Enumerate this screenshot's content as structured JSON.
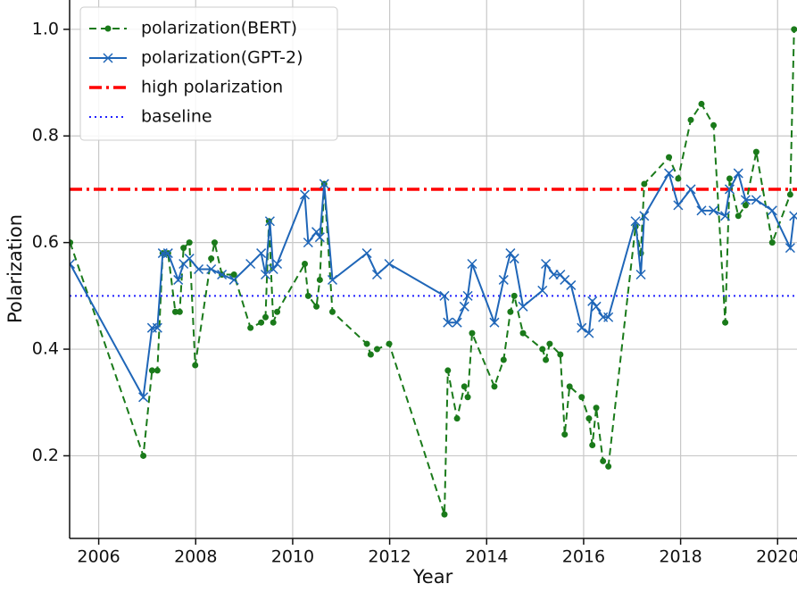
{
  "chart_data": {
    "type": "line",
    "x_label": "Year",
    "y_label": "Polarization",
    "xlim": [
      2005.4,
      2020.4
    ],
    "ylim": [
      0.045,
      1.055
    ],
    "xticks": [
      2006,
      2008,
      2010,
      2012,
      2014,
      2016,
      2018,
      2020
    ],
    "yticks": [
      0.2,
      0.4,
      0.6,
      0.8,
      {
        "value": 1,
        "label": "1.0"
      }
    ],
    "grid": true,
    "legend": "upper left",
    "series": [
      {
        "name": "polarization(BERT)",
        "color": "#1a7a1a",
        "style": "dashed",
        "marker": "circle",
        "x": [
          2005.41,
          2006.92,
          2007.1,
          2007.21,
          2007.32,
          2007.43,
          2007.58,
          2007.67,
          2007.75,
          2007.87,
          2007.99,
          2008.32,
          2008.39,
          2008.54,
          2008.79,
          2009.13,
          2009.35,
          2009.44,
          2009.51,
          2009.6,
          2009.68,
          2010.25,
          2010.32,
          2010.49,
          2010.56,
          2010.65,
          2010.82,
          2011.53,
          2011.61,
          2011.74,
          2011.99,
          2013.13,
          2013.2,
          2013.39,
          2013.54,
          2013.61,
          2013.7,
          2014.16,
          2014.35,
          2014.49,
          2014.57,
          2014.75,
          2015.15,
          2015.22,
          2015.3,
          2015.52,
          2015.61,
          2015.71,
          2015.96,
          2016.11,
          2016.18,
          2016.26,
          2016.4,
          2016.51,
          2017.07,
          2017.18,
          2017.25,
          2017.76,
          2017.95,
          2018.21,
          2018.43,
          2018.68,
          2018.92,
          2019.01,
          2019.19,
          2019.34,
          2019.56,
          2019.89,
          2020.26,
          2020.34
        ],
        "values": [
          0.6,
          0.2,
          0.36,
          0.36,
          0.58,
          0.58,
          0.47,
          0.47,
          0.59,
          0.6,
          0.37,
          0.57,
          0.6,
          0.54,
          0.54,
          0.44,
          0.45,
          0.46,
          0.64,
          0.45,
          0.47,
          0.56,
          0.5,
          0.48,
          0.53,
          0.71,
          0.47,
          0.41,
          0.39,
          0.4,
          0.41,
          0.09,
          0.36,
          0.27,
          0.33,
          0.31,
          0.43,
          0.33,
          0.38,
          0.47,
          0.5,
          0.43,
          0.4,
          0.38,
          0.41,
          0.39,
          0.24,
          0.33,
          0.31,
          0.27,
          0.22,
          0.29,
          0.19,
          0.18,
          0.63,
          0.58,
          0.71,
          0.76,
          0.72,
          0.83,
          0.86,
          0.82,
          0.45,
          0.72,
          0.65,
          0.67,
          0.77,
          0.6,
          0.69,
          1.0
        ]
      },
      {
        "name": "polarization(GPT-2)",
        "color": "#1f66b8",
        "style": "solid",
        "marker": "x",
        "x": [
          2005.41,
          2006.92,
          2007.1,
          2007.21,
          2007.32,
          2007.43,
          2007.64,
          2007.75,
          2007.87,
          2008.06,
          2008.32,
          2008.54,
          2008.79,
          2009.13,
          2009.35,
          2009.44,
          2009.53,
          2009.6,
          2009.68,
          2010.25,
          2010.32,
          2010.49,
          2010.56,
          2010.65,
          2010.82,
          2011.53,
          2011.74,
          2011.99,
          2013.13,
          2013.2,
          2013.39,
          2013.54,
          2013.61,
          2013.7,
          2014.16,
          2014.35,
          2014.49,
          2014.57,
          2014.75,
          2015.15,
          2015.22,
          2015.38,
          2015.52,
          2015.61,
          2015.74,
          2015.96,
          2016.11,
          2016.18,
          2016.26,
          2016.4,
          2016.51,
          2017.07,
          2017.18,
          2017.25,
          2017.76,
          2017.95,
          2018.21,
          2018.43,
          2018.68,
          2018.92,
          2019.01,
          2019.19,
          2019.34,
          2019.56,
          2019.89,
          2020.26,
          2020.34
        ],
        "values": [
          0.56,
          0.31,
          0.44,
          0.44,
          0.58,
          0.58,
          0.53,
          0.56,
          0.57,
          0.55,
          0.55,
          0.54,
          0.53,
          0.56,
          0.58,
          0.54,
          0.64,
          0.55,
          0.56,
          0.69,
          0.6,
          0.62,
          0.61,
          0.71,
          0.53,
          0.58,
          0.54,
          0.56,
          0.5,
          0.45,
          0.45,
          0.48,
          0.5,
          0.56,
          0.45,
          0.53,
          0.58,
          0.57,
          0.48,
          0.51,
          0.56,
          0.54,
          0.54,
          0.53,
          0.52,
          0.44,
          0.43,
          0.49,
          0.48,
          0.46,
          0.46,
          0.64,
          0.54,
          0.65,
          0.73,
          0.67,
          0.7,
          0.66,
          0.66,
          0.65,
          0.7,
          0.73,
          0.68,
          0.68,
          0.66,
          0.59,
          0.65
        ]
      }
    ],
    "reference_lines": [
      {
        "name": "high polarization",
        "color": "#ff0000",
        "style": "dashdot",
        "value": 0.7
      },
      {
        "name": "baseline",
        "color": "#2020ff",
        "style": "dotted",
        "value": 0.5
      }
    ]
  }
}
